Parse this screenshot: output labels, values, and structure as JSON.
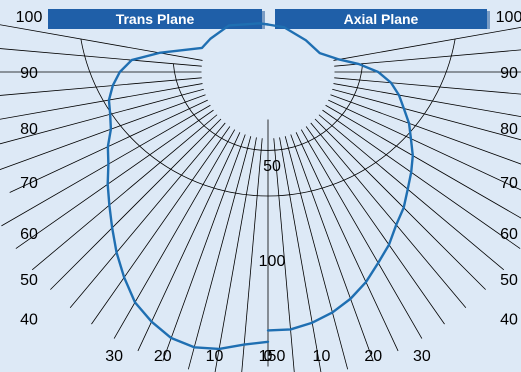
{
  "headers": {
    "left": "Trans Plane",
    "right": "Axial Plane"
  },
  "colors": {
    "background": "#dde9f6",
    "header": "#1f5fa8",
    "header_text": "#ffffff",
    "grid": "#000000",
    "curve": "#1f6fb2"
  },
  "chart_data": {
    "type": "polar",
    "radial_ticks": [
      50,
      100,
      150
    ],
    "radial_max": 150,
    "angle_labels_left": [
      100,
      90,
      80,
      70,
      60,
      50,
      40,
      30,
      20,
      10,
      0
    ],
    "angle_labels_right": [
      100,
      90,
      80,
      70,
      60,
      50,
      40,
      30,
      20,
      10
    ],
    "grid_angles": [
      0,
      5,
      10,
      15,
      20,
      25,
      30,
      35,
      40,
      45,
      50,
      55,
      60,
      65,
      70,
      75,
      80,
      85,
      90,
      95,
      100
    ],
    "series": [
      {
        "plane": "left",
        "points": [
          {
            "angle": 0,
            "r": 142
          },
          {
            "angle": 5,
            "r": 144
          },
          {
            "angle": 10,
            "r": 148
          },
          {
            "angle": 15,
            "r": 150
          },
          {
            "angle": 20,
            "r": 149
          },
          {
            "angle": 25,
            "r": 145
          },
          {
            "angle": 30,
            "r": 140
          },
          {
            "angle": 35,
            "r": 132
          },
          {
            "angle": 40,
            "r": 124
          },
          {
            "angle": 45,
            "r": 116
          },
          {
            "angle": 50,
            "r": 109
          },
          {
            "angle": 55,
            "r": 103
          },
          {
            "angle": 60,
            "r": 97
          },
          {
            "angle": 65,
            "r": 93
          },
          {
            "angle": 70,
            "r": 88
          },
          {
            "angle": 75,
            "r": 86
          },
          {
            "angle": 80,
            "r": 85
          },
          {
            "angle": 85,
            "r": 82
          },
          {
            "angle": 90,
            "r": 78
          },
          {
            "angle": 95,
            "r": 72
          },
          {
            "angle": 100,
            "r": 58
          },
          {
            "angle": 110,
            "r": 37
          },
          {
            "angle": 120,
            "r": 35
          },
          {
            "angle": 140,
            "r": 32
          },
          {
            "angle": 170,
            "r": 26
          },
          {
            "angle": 180,
            "r": 25
          }
        ]
      },
      {
        "plane": "right",
        "points": [
          {
            "angle": 0,
            "r": 136
          },
          {
            "angle": 5,
            "r": 136
          },
          {
            "angle": 10,
            "r": 134
          },
          {
            "angle": 15,
            "r": 131
          },
          {
            "angle": 20,
            "r": 127
          },
          {
            "angle": 25,
            "r": 122
          },
          {
            "angle": 30,
            "r": 116
          },
          {
            "angle": 35,
            "r": 111
          },
          {
            "angle": 40,
            "r": 105
          },
          {
            "angle": 45,
            "r": 101
          },
          {
            "angle": 50,
            "r": 96
          },
          {
            "angle": 55,
            "r": 92
          },
          {
            "angle": 60,
            "r": 88
          },
          {
            "angle": 65,
            "r": 83
          },
          {
            "angle": 70,
            "r": 79
          },
          {
            "angle": 75,
            "r": 74
          },
          {
            "angle": 80,
            "r": 70
          },
          {
            "angle": 85,
            "r": 65
          },
          {
            "angle": 90,
            "r": 58
          },
          {
            "angle": 95,
            "r": 48
          },
          {
            "angle": 100,
            "r": 38
          },
          {
            "angle": 110,
            "r": 29
          },
          {
            "angle": 130,
            "r": 26
          },
          {
            "angle": 160,
            "r": 25
          },
          {
            "angle": 180,
            "r": 25
          }
        ]
      }
    ]
  }
}
